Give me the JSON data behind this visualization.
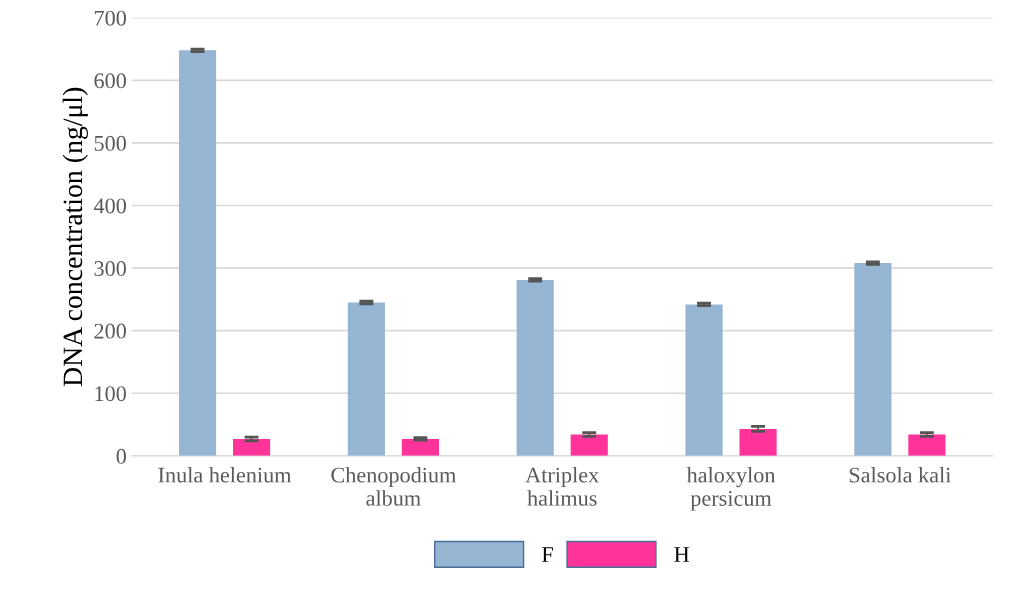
{
  "chart_data": {
    "type": "bar",
    "ylabel": "DNA concentration (ng/μl)",
    "categories": [
      "Inula helenium",
      "Chenopodium\nalbum",
      "Atriplex\nhalimus",
      "haloxylon\npersicum",
      "Salsola kali"
    ],
    "series": [
      {
        "name": "F",
        "color": "#95b5d3",
        "values": [
          648,
          245,
          281,
          242,
          308
        ],
        "errors": [
          2,
          2,
          2,
          2,
          2
        ]
      },
      {
        "name": "H",
        "color": "#ff3399",
        "values": [
          27,
          27,
          34,
          43,
          34
        ],
        "errors": [
          3,
          2,
          3,
          4,
          3
        ]
      }
    ],
    "ylim": [
      0,
      700
    ],
    "yticks": [
      0,
      100,
      200,
      300,
      400,
      500,
      600,
      700
    ],
    "grid": "y",
    "legend": "bottom"
  }
}
